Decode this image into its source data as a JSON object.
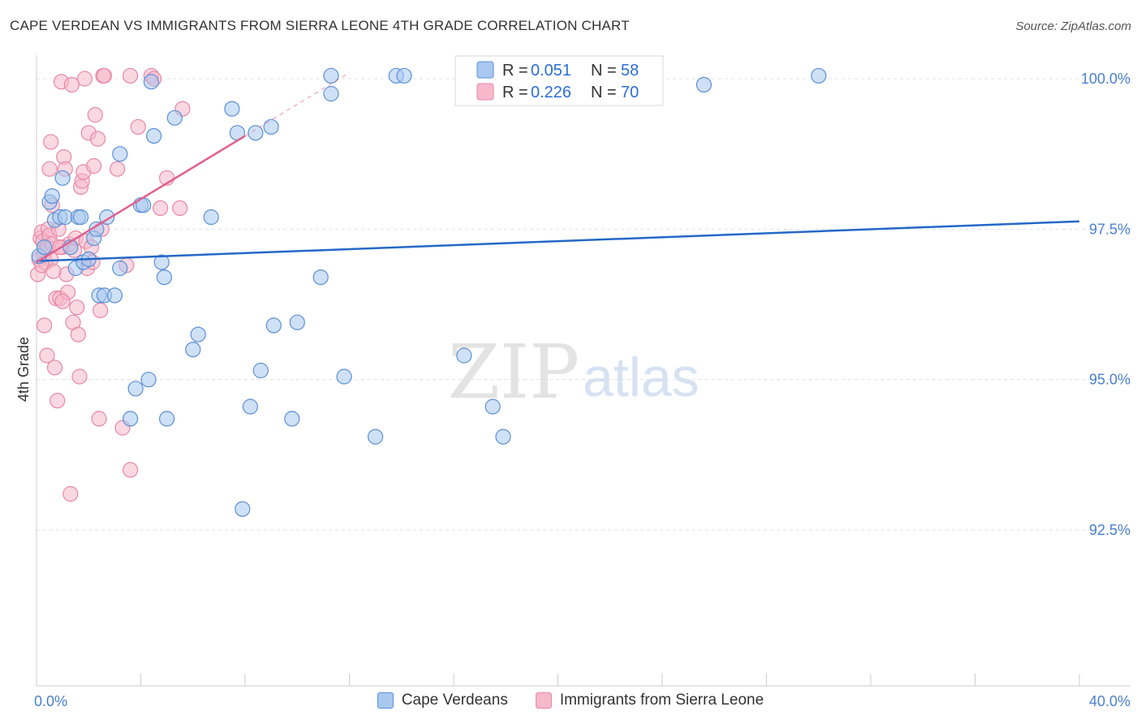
{
  "title": "CAPE VERDEAN VS IMMIGRANTS FROM SIERRA LEONE 4TH GRADE CORRELATION CHART",
  "source": "Source: ZipAtlas.com",
  "watermark": {
    "zip": "ZIP",
    "atlas": "atlas"
  },
  "colors": {
    "blue_fill": "#a8c8f0",
    "blue_stroke": "#5b8fd6",
    "blue_line": "#2468c8",
    "pink_fill": "#f6b8cb",
    "pink_stroke": "#e887a5",
    "pink_line": "#e0608e",
    "tick": "#4a7fd0",
    "grid": "#e0e0e0"
  },
  "legend": {
    "r_label": "R =",
    "n_label": "N =",
    "blue": {
      "r": "0.051",
      "n": "58"
    },
    "pink": {
      "r": "0.226",
      "n": "70"
    }
  },
  "chart_data": {
    "type": "scatter",
    "title": "CAPE VERDEAN VS IMMIGRANTS FROM SIERRA LEONE 4TH GRADE CORRELATION CHART",
    "xlabel": "",
    "ylabel": "4th Grade",
    "xlim": [
      0,
      40
    ],
    "ylim": [
      90.0,
      100.2
    ],
    "x_tick_labels": [
      {
        "value": 0,
        "label": "0.0%"
      },
      {
        "value": 40,
        "label": "40.0%"
      }
    ],
    "y_tick_labels": [
      {
        "value": 100.0,
        "label": "100.0%"
      },
      {
        "value": 97.5,
        "label": "97.5%"
      },
      {
        "value": 95.0,
        "label": "95.0%"
      },
      {
        "value": 92.5,
        "label": "92.5%"
      }
    ],
    "series": [
      {
        "name": "Cape Verdeans",
        "r": 0.051,
        "n": 58,
        "trend": {
          "x0": 0,
          "y0": 96.97,
          "x1": 40,
          "y1": 97.63
        },
        "points": [
          [
            0.1,
            97.05
          ],
          [
            0.3,
            97.2
          ],
          [
            0.5,
            97.95
          ],
          [
            0.7,
            97.65
          ],
          [
            0.6,
            98.05
          ],
          [
            0.9,
            97.7
          ],
          [
            1.0,
            98.35
          ],
          [
            1.1,
            97.7
          ],
          [
            1.3,
            97.2
          ],
          [
            1.5,
            96.85
          ],
          [
            1.6,
            97.7
          ],
          [
            1.7,
            97.7
          ],
          [
            1.8,
            96.95
          ],
          [
            2.0,
            97.0
          ],
          [
            2.2,
            97.35
          ],
          [
            2.3,
            97.5
          ],
          [
            2.4,
            96.4
          ],
          [
            2.6,
            96.4
          ],
          [
            2.7,
            97.7
          ],
          [
            3.0,
            96.4
          ],
          [
            3.2,
            98.75
          ],
          [
            3.2,
            96.85
          ],
          [
            3.6,
            94.35
          ],
          [
            3.8,
            94.85
          ],
          [
            4.0,
            97.9
          ],
          [
            4.1,
            97.9
          ],
          [
            4.3,
            95.0
          ],
          [
            4.4,
            99.95
          ],
          [
            4.5,
            99.05
          ],
          [
            4.8,
            96.95
          ],
          [
            4.9,
            96.7
          ],
          [
            5.0,
            94.35
          ],
          [
            5.3,
            99.35
          ],
          [
            6.0,
            95.5
          ],
          [
            6.2,
            95.75
          ],
          [
            6.7,
            97.7
          ],
          [
            7.5,
            99.5
          ],
          [
            7.7,
            99.1
          ],
          [
            7.9,
            92.85
          ],
          [
            8.2,
            94.55
          ],
          [
            8.4,
            99.1
          ],
          [
            8.6,
            95.15
          ],
          [
            9.0,
            99.2
          ],
          [
            9.1,
            95.9
          ],
          [
            9.8,
            94.35
          ],
          [
            10.0,
            95.95
          ],
          [
            10.9,
            96.7
          ],
          [
            11.3,
            99.75
          ],
          [
            11.3,
            100.05
          ],
          [
            11.8,
            95.05
          ],
          [
            13.0,
            94.05
          ],
          [
            13.8,
            100.05
          ],
          [
            14.1,
            100.05
          ],
          [
            16.4,
            95.4
          ],
          [
            17.5,
            94.55
          ],
          [
            17.9,
            94.05
          ],
          [
            25.6,
            99.9
          ],
          [
            30.0,
            100.05
          ]
        ]
      },
      {
        "name": "Immigrants from Sierra Leone",
        "r": 0.226,
        "n": 70,
        "trend": {
          "x0": 0,
          "y0": 96.95,
          "x1": 8.0,
          "y1": 99.05
        },
        "trend_extension": {
          "x0": 8.0,
          "y0": 99.05,
          "x1": 12.0,
          "y1": 100.1
        },
        "points": [
          [
            0.05,
            96.75
          ],
          [
            0.1,
            97.0
          ],
          [
            0.15,
            97.35
          ],
          [
            0.2,
            97.45
          ],
          [
            0.25,
            97.3
          ],
          [
            0.3,
            97.1
          ],
          [
            0.35,
            96.95
          ],
          [
            0.4,
            97.2
          ],
          [
            0.45,
            97.5
          ],
          [
            0.5,
            97.4
          ],
          [
            0.55,
            97.0
          ],
          [
            0.6,
            97.25
          ],
          [
            0.3,
            95.9
          ],
          [
            0.4,
            95.4
          ],
          [
            0.5,
            98.5
          ],
          [
            0.55,
            98.95
          ],
          [
            0.6,
            97.9
          ],
          [
            0.7,
            95.2
          ],
          [
            0.75,
            96.35
          ],
          [
            0.8,
            94.65
          ],
          [
            0.85,
            97.5
          ],
          [
            0.9,
            96.35
          ],
          [
            0.95,
            99.95
          ],
          [
            1.0,
            97.2
          ],
          [
            1.05,
            98.7
          ],
          [
            1.1,
            98.5
          ],
          [
            1.15,
            96.75
          ],
          [
            1.2,
            96.45
          ],
          [
            1.25,
            97.25
          ],
          [
            1.3,
            93.1
          ],
          [
            1.35,
            99.9
          ],
          [
            1.4,
            95.95
          ],
          [
            1.45,
            97.15
          ],
          [
            1.5,
            97.35
          ],
          [
            1.55,
            96.2
          ],
          [
            1.6,
            95.75
          ],
          [
            1.65,
            95.05
          ],
          [
            1.7,
            98.2
          ],
          [
            1.75,
            98.3
          ],
          [
            1.8,
            98.45
          ],
          [
            1.85,
            100.0
          ],
          [
            1.9,
            97.3
          ],
          [
            1.95,
            96.85
          ],
          [
            2.0,
            99.1
          ],
          [
            2.1,
            97.2
          ],
          [
            2.15,
            96.95
          ],
          [
            2.2,
            98.55
          ],
          [
            2.25,
            99.4
          ],
          [
            2.35,
            99.0
          ],
          [
            2.4,
            94.35
          ],
          [
            2.45,
            96.15
          ],
          [
            2.5,
            97.5
          ],
          [
            2.55,
            100.05
          ],
          [
            2.6,
            100.05
          ],
          [
            3.1,
            98.5
          ],
          [
            3.3,
            94.2
          ],
          [
            3.45,
            96.9
          ],
          [
            3.6,
            100.05
          ],
          [
            3.6,
            93.5
          ],
          [
            3.9,
            99.2
          ],
          [
            4.4,
            100.05
          ],
          [
            4.5,
            100.0
          ],
          [
            4.75,
            97.85
          ],
          [
            5.0,
            98.35
          ],
          [
            5.5,
            97.85
          ],
          [
            5.6,
            99.5
          ],
          [
            0.2,
            96.9
          ],
          [
            0.65,
            96.8
          ],
          [
            1.0,
            96.3
          ],
          [
            0.9,
            97.2
          ]
        ]
      }
    ]
  },
  "bottom_legend": [
    "Cape Verdeans",
    "Immigrants from Sierra Leone"
  ]
}
